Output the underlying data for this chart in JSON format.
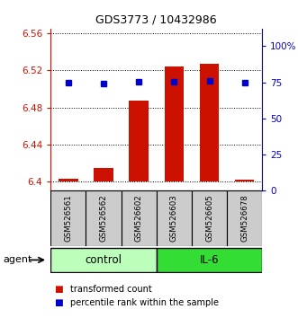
{
  "title": "GDS3773 / 10432986",
  "categories": [
    "GSM526561",
    "GSM526562",
    "GSM526602",
    "GSM526603",
    "GSM526605",
    "GSM526678"
  ],
  "bar_values": [
    6.403,
    6.415,
    6.487,
    6.524,
    6.527,
    6.402
  ],
  "bar_base": 6.4,
  "percentile_values": [
    6.507,
    6.506,
    6.508,
    6.508,
    6.509,
    6.507
  ],
  "ylim_left": [
    6.39,
    6.565
  ],
  "yticks_left": [
    6.4,
    6.44,
    6.48,
    6.52,
    6.56
  ],
  "ytick_labels_left": [
    "6.4",
    "6.44",
    "6.48",
    "6.52",
    "6.56"
  ],
  "ylim_right": [
    0,
    112
  ],
  "yticks_right": [
    0,
    25,
    50,
    75,
    100
  ],
  "ytick_labels_right": [
    "0",
    "25",
    "50",
    "75",
    "100%"
  ],
  "bar_color": "#cc1100",
  "percentile_color": "#0000cc",
  "title_color": "#000000",
  "left_axis_color": "#cc1100",
  "right_axis_color": "#0000cc",
  "group_labels": [
    "control",
    "IL-6"
  ],
  "group_col_spans": [
    3,
    3
  ],
  "group_colors": [
    "#bbffbb",
    "#33dd33"
  ],
  "agent_label": "agent",
  "legend_items": [
    "transformed count",
    "percentile rank within the sample"
  ],
  "legend_colors": [
    "#cc1100",
    "#0000cc"
  ],
  "xlabel_bg": "#cccccc",
  "bar_width": 0.55,
  "figsize": [
    3.31,
    3.54
  ],
  "dpi": 100
}
